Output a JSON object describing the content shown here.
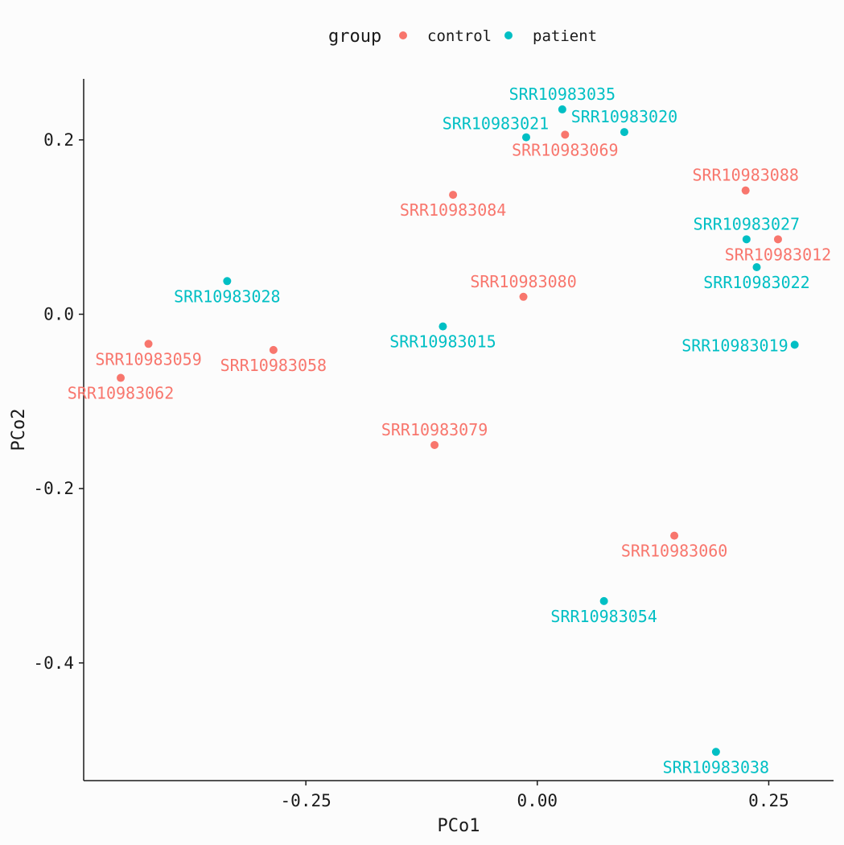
{
  "chart_data": {
    "type": "scatter",
    "xlabel": "PCo1",
    "ylabel": "PCo2",
    "xlim": [
      -0.49,
      0.32
    ],
    "ylim": [
      -0.535,
      0.27
    ],
    "x_ticks": [
      -0.25,
      0.0,
      0.25
    ],
    "x_tick_labels": [
      "-0.25",
      "0.00",
      "0.25"
    ],
    "y_ticks": [
      0.2,
      0.0,
      -0.2,
      -0.4
    ],
    "y_tick_labels": [
      "0.2",
      "0.0",
      "-0.2",
      "-0.4"
    ],
    "grid": false,
    "legend": {
      "title": "group",
      "position": "top",
      "entries": [
        {
          "label": "control",
          "color": "#F8766D"
        },
        {
          "label": "patient",
          "color": "#00BFC4"
        }
      ]
    },
    "series": [
      {
        "name": "control",
        "color": "#F8766D",
        "points": [
          {
            "x": 0.03,
            "y": 0.206,
            "label": "SRR10983069",
            "anchor": "below"
          },
          {
            "x": 0.225,
            "y": 0.142,
            "label": "SRR10983088",
            "anchor": "above"
          },
          {
            "x": -0.091,
            "y": 0.137,
            "label": "SRR10983084",
            "anchor": "below"
          },
          {
            "x": 0.26,
            "y": 0.086,
            "label": "SRR10983012",
            "anchor": "below"
          },
          {
            "x": -0.015,
            "y": 0.02,
            "label": "SRR10983080",
            "anchor": "above"
          },
          {
            "x": -0.42,
            "y": -0.034,
            "label": "SRR10983059",
            "anchor": "below"
          },
          {
            "x": -0.285,
            "y": -0.041,
            "label": "SRR10983058",
            "anchor": "below"
          },
          {
            "x": -0.45,
            "y": -0.073,
            "label": "SRR10983062",
            "anchor": "below"
          },
          {
            "x": -0.111,
            "y": -0.15,
            "label": "SRR10983079",
            "anchor": "above"
          },
          {
            "x": 0.148,
            "y": -0.254,
            "label": "SRR10983060",
            "anchor": "below"
          }
        ]
      },
      {
        "name": "patient",
        "color": "#00BFC4",
        "points": [
          {
            "x": 0.027,
            "y": 0.235,
            "label": "SRR10983035",
            "anchor": "above"
          },
          {
            "x": 0.094,
            "y": 0.209,
            "label": "SRR10983020",
            "anchor": "above"
          },
          {
            "x": -0.012,
            "y": 0.203,
            "label": "SRR10983021",
            "anchor": "above-left"
          },
          {
            "x": 0.226,
            "y": 0.086,
            "label": "SRR10983027",
            "anchor": "above"
          },
          {
            "x": 0.237,
            "y": 0.054,
            "label": "SRR10983022",
            "anchor": "below"
          },
          {
            "x": -0.335,
            "y": 0.038,
            "label": "SRR10983028",
            "anchor": "below"
          },
          {
            "x": -0.102,
            "y": -0.014,
            "label": "SRR10983015",
            "anchor": "below"
          },
          {
            "x": 0.278,
            "y": -0.035,
            "label": "SRR10983019",
            "anchor": "left"
          },
          {
            "x": 0.072,
            "y": -0.329,
            "label": "SRR10983054",
            "anchor": "below"
          },
          {
            "x": 0.193,
            "y": -0.502,
            "label": "SRR10983038",
            "anchor": "below"
          }
        ]
      }
    ]
  }
}
